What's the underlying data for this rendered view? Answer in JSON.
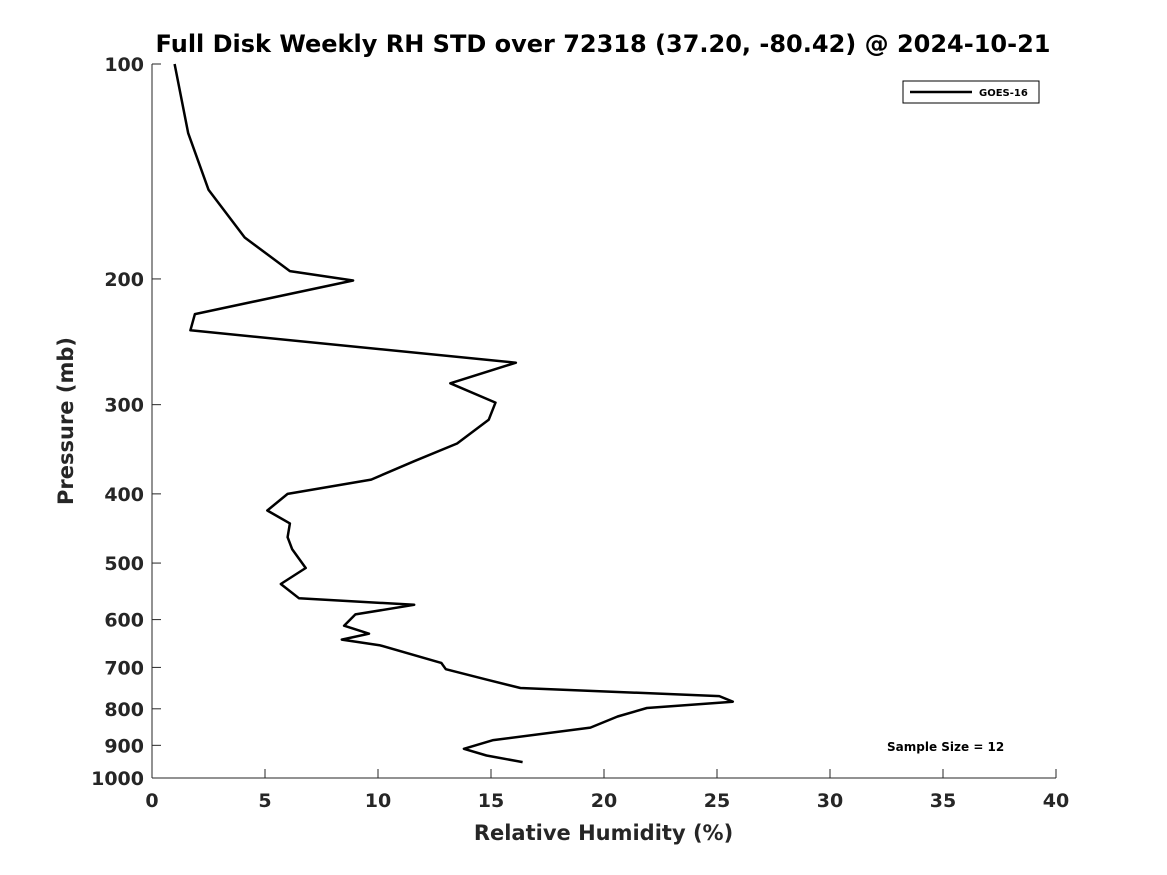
{
  "chart_data": {
    "type": "line",
    "title": "Full Disk Weekly RH STD over 72318 (37.20, -80.42) @ 2024-10-21",
    "xlabel": "Relative Humidity (%)",
    "ylabel": "Pressure (mb)",
    "xlim": [
      0,
      40
    ],
    "ylim": [
      100,
      1000
    ],
    "y_scale": "log",
    "y_reversed": true,
    "x_ticks": [
      0,
      5,
      10,
      15,
      20,
      25,
      30,
      35,
      40
    ],
    "y_ticks": [
      100,
      200,
      300,
      400,
      500,
      600,
      700,
      800,
      900,
      1000
    ],
    "grid": false,
    "legend_position": "top-right",
    "series": [
      {
        "name": "GOES-16",
        "color": "#000000",
        "points": [
          [
            1.0,
            100
          ],
          [
            1.6,
            125
          ],
          [
            2.5,
            150
          ],
          [
            4.1,
            175
          ],
          [
            6.1,
            195
          ],
          [
            8.9,
            201
          ],
          [
            1.9,
            224
          ],
          [
            1.7,
            236
          ],
          [
            16.1,
            262
          ],
          [
            13.2,
            280
          ],
          [
            15.2,
            298
          ],
          [
            14.9,
            315
          ],
          [
            13.5,
            340
          ],
          [
            11.6,
            360
          ],
          [
            9.7,
            382
          ],
          [
            6.0,
            400
          ],
          [
            5.1,
            422
          ],
          [
            6.1,
            440
          ],
          [
            6.0,
            460
          ],
          [
            6.2,
            478
          ],
          [
            6.8,
            508
          ],
          [
            5.7,
            535
          ],
          [
            6.5,
            560
          ],
          [
            11.6,
            572
          ],
          [
            9.0,
            590
          ],
          [
            8.5,
            612
          ],
          [
            9.6,
            628
          ],
          [
            8.4,
            640
          ],
          [
            10.1,
            652
          ],
          [
            12.8,
            690
          ],
          [
            13.0,
            704
          ],
          [
            14.8,
            728
          ],
          [
            16.3,
            748
          ],
          [
            25.1,
            768
          ],
          [
            25.7,
            782
          ],
          [
            21.9,
            798
          ],
          [
            20.6,
            820
          ],
          [
            19.4,
            850
          ],
          [
            15.1,
            885
          ],
          [
            13.8,
            910
          ],
          [
            14.8,
            930
          ],
          [
            16.4,
            950
          ]
        ]
      }
    ],
    "annotations": [
      "Sample Size = 12"
    ]
  }
}
